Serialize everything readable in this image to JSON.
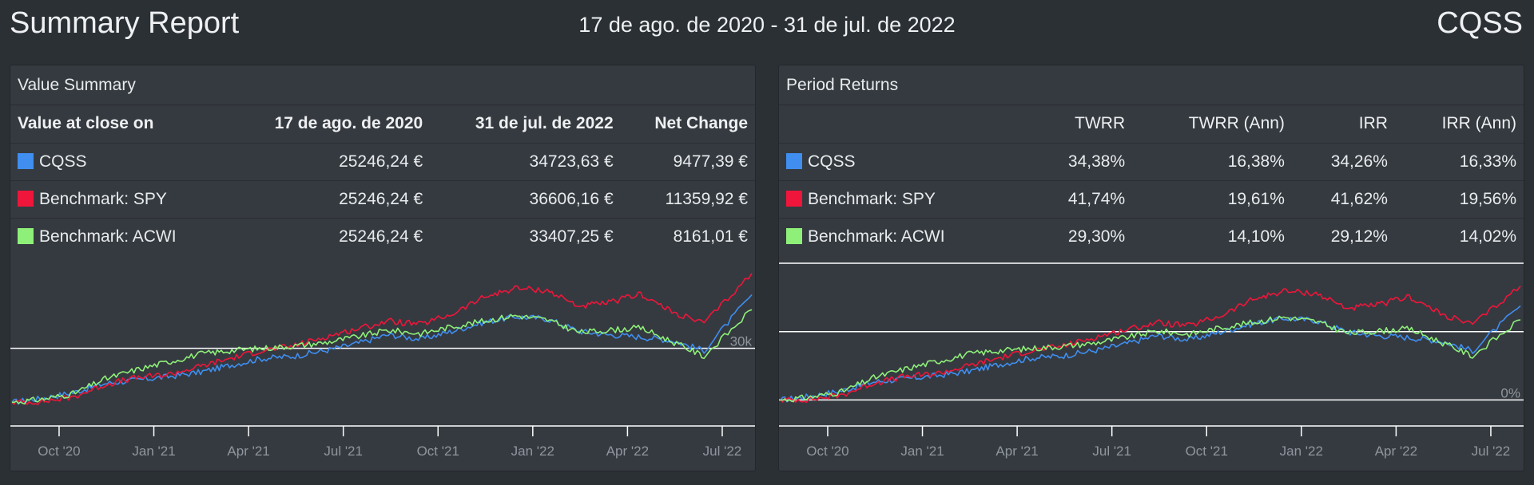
{
  "header": {
    "title": "Summary Report",
    "date_range": "17 de ago. de 2020 - 31 de jul. de 2022",
    "ticker": "CQSS"
  },
  "colors": {
    "CQSS": "#3f8ef0",
    "SPY": "#f0153a",
    "ACWI": "#8ef078"
  },
  "value_summary": {
    "title": "Value Summary",
    "columns": [
      "Value at close on",
      "17 de ago. de 2020",
      "31 de jul. de 2022",
      "Net Change"
    ],
    "rows": [
      {
        "name": "CQSS",
        "start": "25246,24 €",
        "end": "34723,63 €",
        "change": "9477,39 €"
      },
      {
        "name": "Benchmark: SPY",
        "start": "25246,24 €",
        "end": "36606,16 €",
        "change": "11359,92 €"
      },
      {
        "name": "Benchmark: ACWI",
        "start": "25246,24 €",
        "end": "33407,25 €",
        "change": "8161,01 €"
      }
    ]
  },
  "period_returns": {
    "title": "Period Returns",
    "columns": [
      "",
      "TWRR",
      "TWRR (Ann)",
      "IRR",
      "IRR (Ann)"
    ],
    "rows": [
      {
        "name": "CQSS",
        "twrr": "34,38%",
        "twrr_ann": "16,38%",
        "irr": "34,26%",
        "irr_ann": "16,33%"
      },
      {
        "name": "Benchmark: SPY",
        "twrr": "41,74%",
        "twrr_ann": "19,61%",
        "irr": "41,62%",
        "irr_ann": "19,56%"
      },
      {
        "name": "Benchmark: ACWI",
        "twrr": "29,30%",
        "twrr_ann": "14,10%",
        "irr": "29,12%",
        "irr_ann": "14,02%"
      }
    ]
  },
  "chart_data": [
    {
      "type": "line",
      "x_ticks": [
        "Oct '20",
        "Jan '21",
        "Apr '21",
        "Jul '21",
        "Oct '21",
        "Jan '22",
        "Apr '22",
        "Jul '22"
      ],
      "gridline_labels": [
        "30k"
      ],
      "ylim": [
        24000,
        37500
      ],
      "x": [
        "2020-08-17",
        "2020-09-15",
        "2020-10-15",
        "2020-11-15",
        "2020-12-15",
        "2021-01-15",
        "2021-02-15",
        "2021-03-15",
        "2021-04-15",
        "2021-05-15",
        "2021-06-15",
        "2021-07-15",
        "2021-08-15",
        "2021-09-15",
        "2021-10-15",
        "2021-11-15",
        "2021-12-15",
        "2022-01-15",
        "2022-02-15",
        "2022-03-15",
        "2022-04-15",
        "2022-05-15",
        "2022-06-15",
        "2022-07-31"
      ],
      "series": [
        {
          "name": "CQSS",
          "values": [
            25246,
            25600,
            26100,
            26900,
            27200,
            27500,
            27900,
            28500,
            29100,
            29300,
            29800,
            30400,
            31200,
            30800,
            31500,
            32300,
            32800,
            32600,
            31500,
            31200,
            31000,
            30700,
            29800,
            34724
          ]
        },
        {
          "name": "Benchmark: SPY",
          "values": [
            25246,
            25300,
            25700,
            26800,
            27400,
            27700,
            28400,
            29100,
            29800,
            30200,
            31000,
            31700,
            32400,
            32100,
            33000,
            34500,
            35300,
            35100,
            33700,
            34000,
            34800,
            33200,
            32200,
            36606
          ]
        },
        {
          "name": "Benchmark: ACWI",
          "values": [
            25246,
            25500,
            26000,
            27300,
            28100,
            28800,
            29500,
            29800,
            30000,
            30200,
            30500,
            31000,
            31600,
            31300,
            31900,
            32400,
            32900,
            32500,
            31400,
            31600,
            31800,
            30600,
            29300,
            33407
          ]
        }
      ]
    },
    {
      "type": "line",
      "x_ticks": [
        "Oct '20",
        "Jan '21",
        "Apr '21",
        "Jul '21",
        "Oct '21",
        "Jan '22",
        "Apr '22",
        "Jul '22"
      ],
      "gridline_labels": [
        "0%"
      ],
      "ylim": [
        -6,
        50
      ],
      "x": [
        "2020-08-17",
        "2020-09-15",
        "2020-10-15",
        "2020-11-15",
        "2020-12-15",
        "2021-01-15",
        "2021-02-15",
        "2021-03-15",
        "2021-04-15",
        "2021-05-15",
        "2021-06-15",
        "2021-07-15",
        "2021-08-15",
        "2021-09-15",
        "2021-10-15",
        "2021-11-15",
        "2021-12-15",
        "2022-01-15",
        "2022-02-15",
        "2022-03-15",
        "2022-04-15",
        "2022-05-15",
        "2022-06-15",
        "2022-07-31"
      ],
      "series": [
        {
          "name": "CQSS",
          "values": [
            0,
            1.4,
            3.4,
            6.6,
            7.7,
            8.9,
            10.5,
            12.9,
            15.3,
            16.1,
            18.0,
            20.4,
            23.6,
            22.0,
            24.8,
            27.9,
            29.9,
            29.1,
            24.8,
            23.6,
            22.8,
            21.6,
            18.0,
            34.4
          ]
        },
        {
          "name": "Benchmark: SPY",
          "values": [
            0,
            0.2,
            1.8,
            6.2,
            8.5,
            9.7,
            12.5,
            15.3,
            18.0,
            19.6,
            22.8,
            25.6,
            28.3,
            27.1,
            30.7,
            36.7,
            39.8,
            39.0,
            33.5,
            34.7,
            37.8,
            31.5,
            27.5,
            41.7
          ]
        },
        {
          "name": "Benchmark: ACWI",
          "values": [
            0,
            1.0,
            3.0,
            8.1,
            11.3,
            14.1,
            16.8,
            18.0,
            18.8,
            19.6,
            20.8,
            22.8,
            25.2,
            24.0,
            26.4,
            28.3,
            30.3,
            28.7,
            24.4,
            25.2,
            26.0,
            21.2,
            16.1,
            29.3
          ]
        }
      ]
    }
  ]
}
